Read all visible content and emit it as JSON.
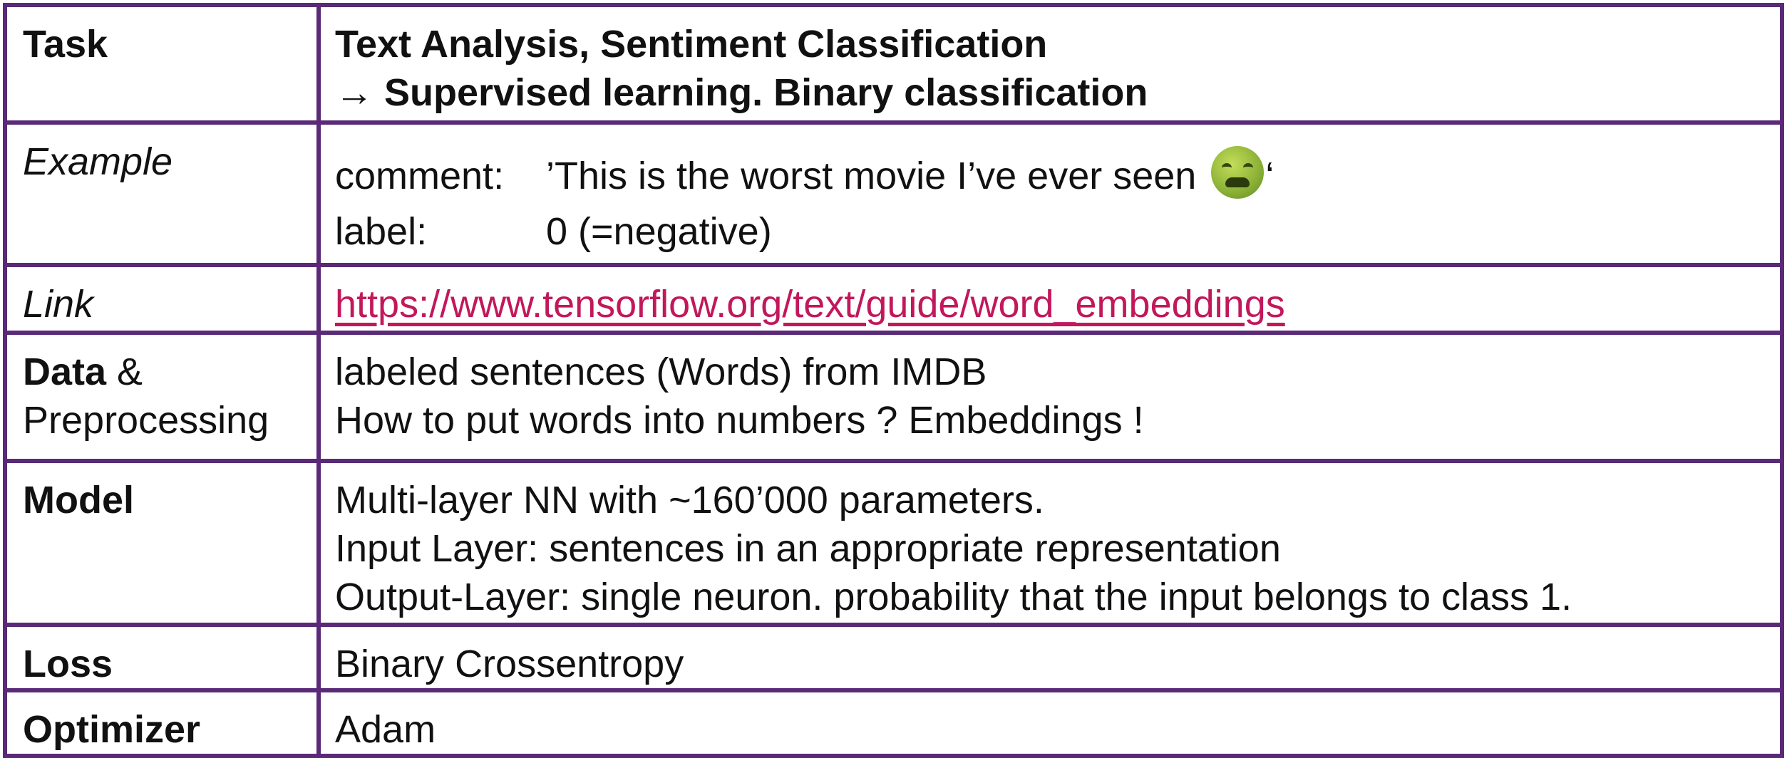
{
  "rows": {
    "task": {
      "label": "Task",
      "lines": [
        "Text Analysis, Sentiment Classification",
        "→ Supervised learning. Binary classification"
      ]
    },
    "example": {
      "label": "Example",
      "comment_key": "comment:",
      "comment_text": "’This is the worst movie I’ve ever seen ",
      "comment_close": "‘",
      "emoji_icon": "nauseated-face-icon",
      "label_key": "label:",
      "label_value": "0 (=negative)"
    },
    "link": {
      "label": "Link",
      "url": "https://www.tensorflow.org/text/guide/word_embeddings"
    },
    "data": {
      "label_bold": "Data",
      "label_amp": " &",
      "label_second": "Preprocessing",
      "lines": [
        "labeled sentences (Words) from IMDB",
        "How to put words into numbers ? Embeddings !"
      ]
    },
    "model": {
      "label": "Model",
      "lines": [
        "Multi-layer NN with ~160’000 parameters.",
        "Input Layer: sentences in an appropriate representation",
        "Output-Layer: single neuron. probability that the input belongs to class 1."
      ]
    },
    "loss": {
      "label": "Loss",
      "value": "Binary Crossentropy"
    },
    "optimizer": {
      "label": "Optimizer",
      "value": "Adam"
    }
  },
  "colors": {
    "border": "#5a2a78",
    "link": "#c2185b"
  }
}
